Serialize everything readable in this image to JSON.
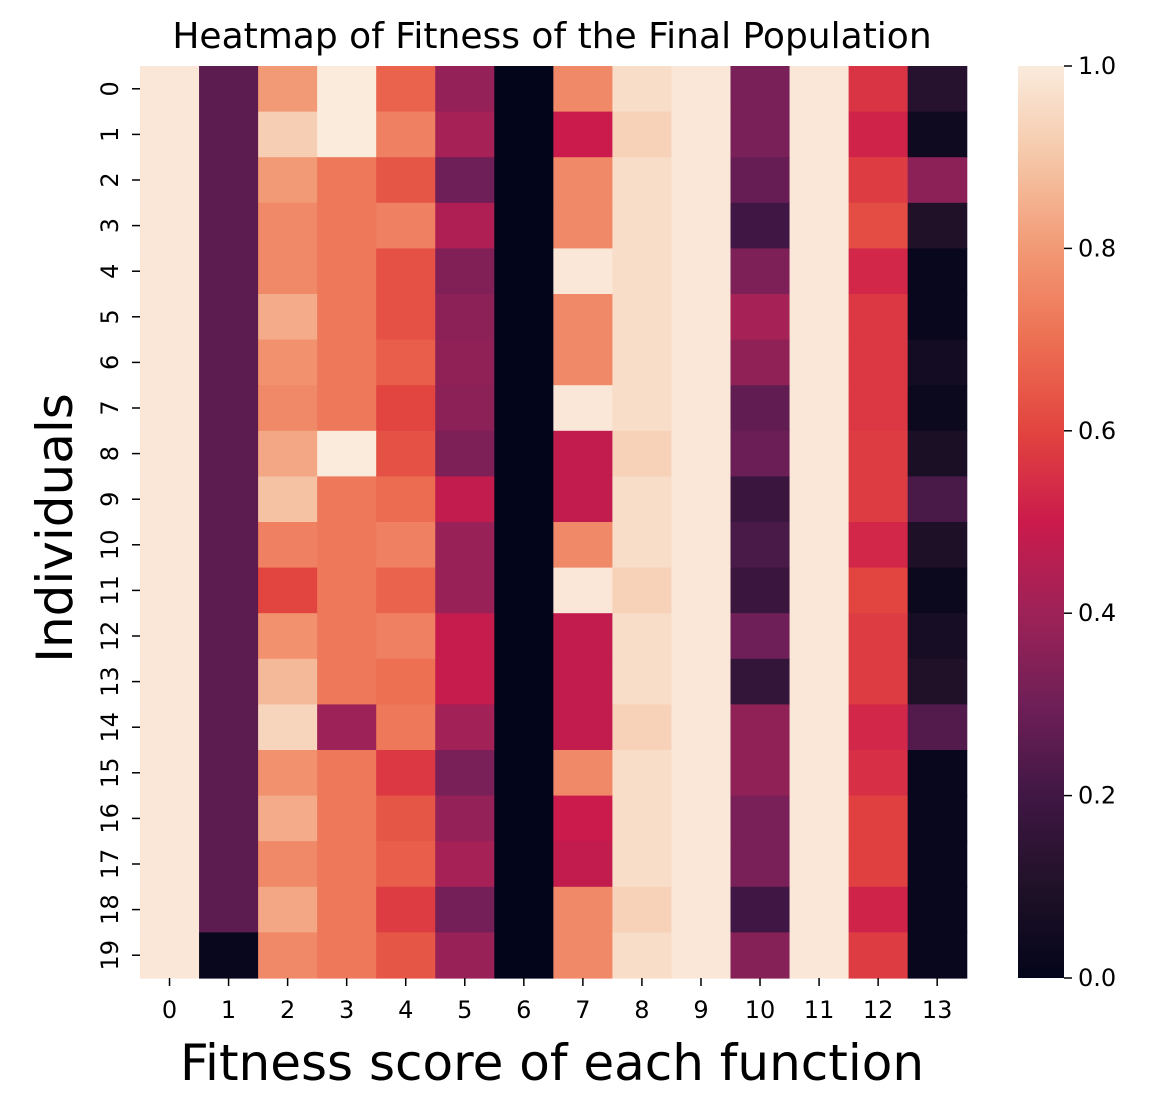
{
  "chart_data": {
    "type": "heatmap",
    "title": "Heatmap of Fitness of the Final Population",
    "xlabel": "Fitness score of each function",
    "ylabel": "Individuals",
    "columns": [
      "0",
      "1",
      "2",
      "3",
      "4",
      "5",
      "6",
      "7",
      "8",
      "9",
      "10",
      "11",
      "12",
      "13"
    ],
    "rows": [
      "0",
      "1",
      "2",
      "3",
      "4",
      "5",
      "6",
      "7",
      "8",
      "9",
      "10",
      "11",
      "12",
      "13",
      "14",
      "15",
      "16",
      "17",
      "18",
      "19"
    ],
    "colorbar": {
      "range": [
        0.0,
        1.0
      ],
      "ticks": [
        "0.0",
        "0.2",
        "0.4",
        "0.6",
        "0.8",
        "1.0"
      ],
      "colormap": "rocket"
    },
    "values": [
      [
        0.99,
        0.26,
        0.8,
        1.0,
        0.67,
        0.38,
        0.0,
        0.76,
        0.96,
        0.99,
        0.32,
        0.99,
        0.56,
        0.12
      ],
      [
        0.99,
        0.26,
        0.92,
        1.0,
        0.74,
        0.42,
        0.0,
        0.5,
        0.93,
        0.99,
        0.32,
        0.99,
        0.52,
        0.04
      ],
      [
        0.99,
        0.26,
        0.8,
        0.72,
        0.64,
        0.3,
        0.0,
        0.76,
        0.96,
        0.99,
        0.28,
        0.99,
        0.58,
        0.36
      ],
      [
        0.99,
        0.26,
        0.76,
        0.72,
        0.74,
        0.44,
        0.0,
        0.76,
        0.96,
        0.99,
        0.2,
        0.99,
        0.62,
        0.1
      ],
      [
        0.99,
        0.26,
        0.76,
        0.72,
        0.63,
        0.34,
        0.0,
        0.99,
        0.96,
        0.99,
        0.33,
        0.99,
        0.53,
        0.02
      ],
      [
        0.99,
        0.26,
        0.84,
        0.72,
        0.63,
        0.36,
        0.0,
        0.76,
        0.96,
        0.99,
        0.42,
        0.99,
        0.57,
        0.02
      ],
      [
        0.99,
        0.26,
        0.78,
        0.72,
        0.66,
        0.37,
        0.0,
        0.76,
        0.96,
        0.99,
        0.37,
        0.99,
        0.57,
        0.06
      ],
      [
        0.99,
        0.26,
        0.76,
        0.72,
        0.6,
        0.36,
        0.0,
        0.99,
        0.96,
        0.99,
        0.27,
        0.99,
        0.57,
        0.03
      ],
      [
        0.99,
        0.26,
        0.83,
        1.0,
        0.63,
        0.33,
        0.0,
        0.48,
        0.93,
        0.99,
        0.29,
        0.99,
        0.58,
        0.08
      ],
      [
        0.99,
        0.26,
        0.89,
        0.72,
        0.69,
        0.48,
        0.0,
        0.48,
        0.96,
        0.99,
        0.18,
        0.99,
        0.58,
        0.22
      ],
      [
        0.99,
        0.26,
        0.74,
        0.72,
        0.74,
        0.39,
        0.0,
        0.76,
        0.96,
        0.99,
        0.22,
        0.99,
        0.53,
        0.09
      ],
      [
        0.99,
        0.26,
        0.6,
        0.72,
        0.67,
        0.39,
        0.0,
        0.99,
        0.93,
        0.99,
        0.18,
        0.99,
        0.6,
        0.03
      ],
      [
        0.99,
        0.26,
        0.78,
        0.72,
        0.74,
        0.49,
        0.0,
        0.48,
        0.96,
        0.99,
        0.3,
        0.99,
        0.58,
        0.07
      ],
      [
        0.99,
        0.26,
        0.87,
        0.72,
        0.7,
        0.49,
        0.0,
        0.48,
        0.96,
        0.99,
        0.16,
        0.99,
        0.58,
        0.1
      ],
      [
        0.99,
        0.26,
        0.94,
        0.4,
        0.72,
        0.41,
        0.0,
        0.48,
        0.93,
        0.99,
        0.37,
        0.99,
        0.53,
        0.24
      ],
      [
        0.99,
        0.26,
        0.78,
        0.72,
        0.57,
        0.32,
        0.0,
        0.76,
        0.96,
        0.99,
        0.37,
        0.99,
        0.55,
        0.02
      ],
      [
        0.99,
        0.26,
        0.84,
        0.72,
        0.64,
        0.38,
        0.0,
        0.5,
        0.96,
        0.99,
        0.32,
        0.99,
        0.59,
        0.02
      ],
      [
        0.99,
        0.26,
        0.76,
        0.72,
        0.66,
        0.42,
        0.0,
        0.48,
        0.96,
        0.99,
        0.32,
        0.99,
        0.59,
        0.02
      ],
      [
        0.99,
        0.26,
        0.83,
        0.72,
        0.58,
        0.31,
        0.0,
        0.76,
        0.93,
        0.99,
        0.2,
        0.99,
        0.52,
        0.02
      ],
      [
        0.99,
        0.02,
        0.76,
        0.72,
        0.64,
        0.39,
        0.0,
        0.76,
        0.96,
        0.99,
        0.35,
        0.99,
        0.58,
        0.02
      ]
    ]
  }
}
